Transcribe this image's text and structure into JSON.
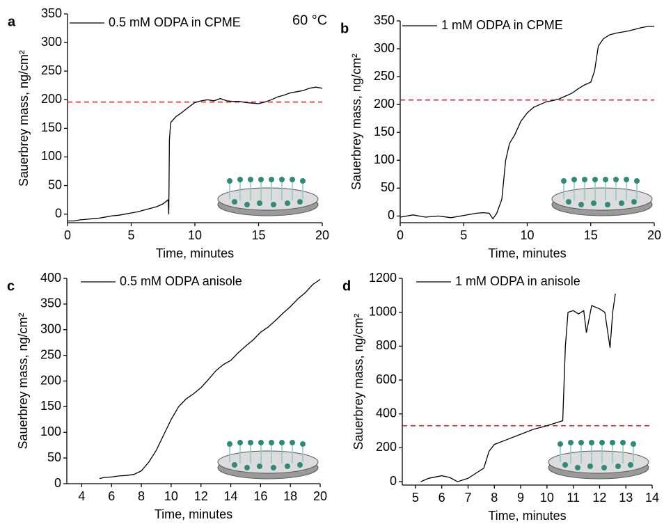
{
  "chart_data": [
    {
      "type": "line",
      "panel": "a",
      "annotation": "60 °C",
      "xlabel": "Time, minutes",
      "ylabel": "Sauerbrey mass, ng/cm²",
      "xlim": [
        0,
        20
      ],
      "xticks": [
        0,
        5,
        10,
        15,
        20
      ],
      "ylim": [
        -15,
        350
      ],
      "yticks": [
        0,
        50,
        100,
        150,
        200,
        250,
        300,
        350
      ],
      "hline": 196,
      "hline_color": "#e8191c",
      "series": [
        {
          "name": "0.5 mM ODPA in CPME",
          "color": "#000000",
          "x": [
            0,
            0.5,
            1,
            1.5,
            2,
            2.5,
            3,
            3.5,
            4,
            4.5,
            5,
            5.5,
            6,
            6.5,
            7,
            7.5,
            7.9,
            7.95,
            8,
            8.1,
            8.5,
            9,
            9.5,
            10,
            10.5,
            11,
            11.5,
            12,
            12.5,
            13,
            13.5,
            14,
            14.5,
            15,
            15.5,
            16,
            16.5,
            17,
            17.5,
            18,
            18.5,
            19,
            19.5,
            20
          ],
          "values": [
            -12,
            -12,
            -10,
            -9,
            -8,
            -7,
            -5,
            -3,
            -2,
            0,
            2,
            4,
            7,
            10,
            13,
            18,
            25,
            0,
            130,
            160,
            170,
            178,
            187,
            195,
            198,
            200,
            198,
            202,
            198,
            197,
            197,
            195,
            194,
            193,
            196,
            200,
            205,
            208,
            212,
            214,
            216,
            220,
            222,
            220
          ]
        }
      ]
    },
    {
      "type": "line",
      "panel": "b",
      "xlabel": "Time, minutes",
      "ylabel": "Sauerbrey mass, ng/cm²",
      "xlim": [
        0,
        20
      ],
      "xticks": [
        0,
        5,
        10,
        15,
        20
      ],
      "ylim": [
        -12,
        350
      ],
      "yticks": [
        0,
        50,
        100,
        150,
        200,
        250,
        300,
        350
      ],
      "hline": 208,
      "hline_color": "#e8191c",
      "series": [
        {
          "name": "1 mM ODPA in CPME",
          "color": "#000000",
          "x": [
            0,
            1,
            2,
            3,
            4,
            5,
            6,
            6.5,
            7,
            7.3,
            7.6,
            8,
            8.3,
            8.6,
            9,
            9.5,
            10,
            10.5,
            11,
            11.5,
            12,
            12.5,
            13,
            13.5,
            14,
            14.5,
            15,
            15.3,
            15.6,
            16,
            16.5,
            17,
            17.5,
            18,
            18.5,
            19,
            19.5,
            20
          ],
          "values": [
            -2,
            2,
            -2,
            0,
            -3,
            1,
            5,
            6,
            5,
            -5,
            5,
            30,
            100,
            130,
            145,
            170,
            185,
            195,
            200,
            205,
            207,
            210,
            215,
            220,
            228,
            235,
            240,
            260,
            305,
            318,
            325,
            328,
            330,
            332,
            335,
            338,
            340,
            340
          ]
        }
      ]
    },
    {
      "type": "line",
      "panel": "c",
      "xlabel": "Time, minutes",
      "ylabel": "Sauerbrey mass, ng/cm²",
      "xlim": [
        3,
        20
      ],
      "xticks": [
        4,
        6,
        8,
        10,
        12,
        14,
        16,
        18,
        20
      ],
      "ylim": [
        0,
        400
      ],
      "yticks": [
        0,
        50,
        100,
        150,
        200,
        250,
        300,
        350,
        400
      ],
      "series": [
        {
          "name": "0.5 mM ODPA anisole",
          "color": "#000000",
          "x": [
            5.2,
            5.5,
            6,
            6.5,
            7,
            7.5,
            8,
            8.5,
            9,
            9.5,
            10,
            10.5,
            11,
            11.5,
            12,
            12.5,
            13,
            13.5,
            14,
            14.5,
            15,
            15.5,
            16,
            16.5,
            17,
            17.5,
            18,
            18.5,
            19,
            19.5,
            20
          ],
          "values": [
            10,
            12,
            13,
            15,
            16,
            18,
            25,
            42,
            65,
            95,
            125,
            150,
            165,
            175,
            187,
            203,
            220,
            232,
            240,
            255,
            268,
            280,
            295,
            305,
            318,
            332,
            345,
            360,
            372,
            388,
            398
          ]
        }
      ]
    },
    {
      "type": "line",
      "panel": "d",
      "xlabel": "Time, minutes",
      "ylabel": "Sauerbrey mass, ng/cm²",
      "xlim": [
        4.5,
        14
      ],
      "xticks": [
        5,
        6,
        7,
        8,
        9,
        10,
        11,
        12,
        13,
        14
      ],
      "ylim": [
        -20,
        1200
      ],
      "yticks": [
        0,
        200,
        400,
        600,
        800,
        1000,
        1200
      ],
      "hline": 330,
      "hline_color": "#e8191c",
      "series": [
        {
          "name": "1 mM ODPA in anisole",
          "color": "#000000",
          "x": [
            5.2,
            5.5,
            6,
            6.3,
            6.6,
            7,
            7.3,
            7.6,
            7.8,
            8,
            8.5,
            9,
            9.5,
            10,
            10.3,
            10.6,
            10.7,
            10.8,
            11,
            11.2,
            11.4,
            11.5,
            11.7,
            12,
            12.2,
            12.4,
            12.5,
            12.6
          ],
          "values": [
            0,
            20,
            35,
            25,
            0,
            20,
            50,
            80,
            180,
            220,
            250,
            280,
            310,
            330,
            345,
            360,
            800,
            1000,
            1010,
            990,
            1010,
            880,
            1040,
            1020,
            1000,
            790,
            1000,
            1110
          ]
        }
      ]
    }
  ]
}
